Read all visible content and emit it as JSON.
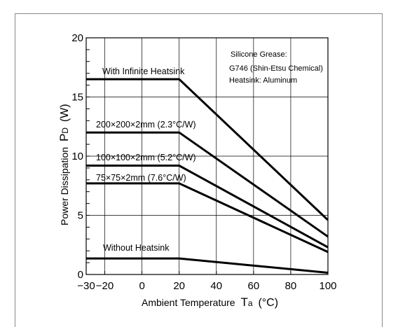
{
  "chart_data": {
    "type": "line",
    "title": "",
    "xlabel": "Ambient Temperature",
    "xlabel_symbol": "T",
    "xlabel_sub": "a",
    "xlabel_unit": "(°C)",
    "ylabel": "Power Dissipation",
    "ylabel_symbol": "P",
    "ylabel_sub": "D",
    "ylabel_unit": "(W)",
    "xlim": [
      -30,
      100
    ],
    "ylim": [
      0,
      20
    ],
    "x_ticks": [
      -30,
      -20,
      0,
      20,
      40,
      60,
      80,
      100
    ],
    "y_ticks": [
      0,
      5,
      10,
      15,
      20
    ],
    "grid": true,
    "note_lines": [
      "Silicone Grease:",
      "G746 (Shin-Etsu Chemical)",
      "Heatsink: Aluminum"
    ],
    "series": [
      {
        "name": "With Infinite Heatsink",
        "x": [
          -30,
          20,
          100
        ],
        "y": [
          16.5,
          16.5,
          4.6
        ]
      },
      {
        "name": "200×200×2mm (2.3°C/W)",
        "x": [
          -30,
          20,
          100
        ],
        "y": [
          12.0,
          12.0,
          3.2
        ]
      },
      {
        "name": "100×100×2mm (5.2°C/W)",
        "x": [
          -30,
          20,
          100
        ],
        "y": [
          9.2,
          9.2,
          2.3
        ]
      },
      {
        "name": "75×75×2mm (7.6°C/W)",
        "x": [
          -30,
          20,
          100
        ],
        "y": [
          7.7,
          7.7,
          1.9
        ]
      },
      {
        "name": "Without Heatsink",
        "x": [
          -30,
          20,
          100
        ],
        "y": [
          1.35,
          1.35,
          0.15
        ]
      }
    ]
  }
}
